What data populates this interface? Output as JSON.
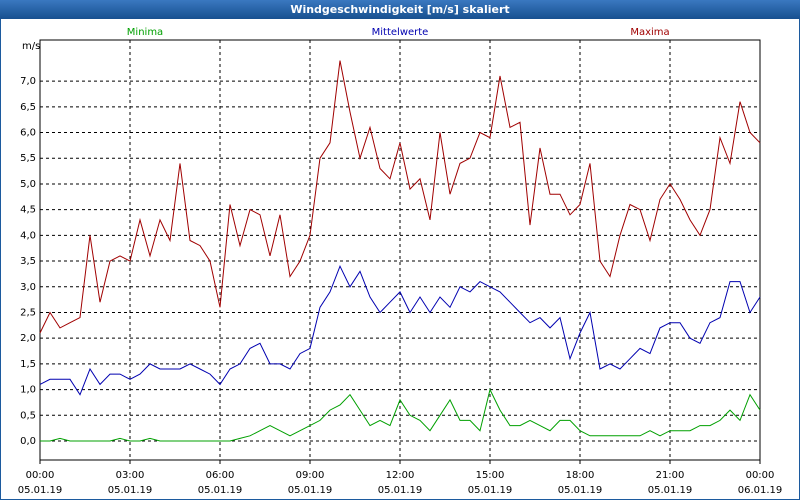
{
  "chart_data": {
    "type": "line",
    "title": "Windgeschwindigkeit [m/s] skaliert",
    "ylabel": "m/s",
    "x": [
      0,
      20,
      40,
      60,
      80,
      100,
      120,
      140,
      160,
      180,
      200,
      220,
      240,
      260,
      280,
      300,
      320,
      340,
      360,
      380,
      400,
      420,
      440,
      460,
      480,
      500,
      520,
      540,
      560,
      580,
      600,
      620,
      640,
      660,
      680,
      700,
      720,
      740,
      760,
      780,
      800,
      820,
      840,
      860,
      880,
      900,
      920,
      940,
      960,
      980,
      1000,
      1020,
      1040,
      1060,
      1080,
      1100,
      1120,
      1140,
      1160,
      1180,
      1200,
      1220,
      1240,
      1260,
      1280,
      1300,
      1320,
      1340,
      1360,
      1380,
      1400,
      1420,
      1440
    ],
    "series": [
      {
        "name": "Minima",
        "color": "#00a000",
        "values": [
          0,
          0,
          0.05,
          0,
          0,
          0,
          0,
          0,
          0.05,
          0,
          0,
          0.05,
          0,
          0,
          0,
          0,
          0,
          0,
          0,
          0,
          0.05,
          0.1,
          0.2,
          0.3,
          0.2,
          0.1,
          0.2,
          0.3,
          0.4,
          0.6,
          0.7,
          0.9,
          0.6,
          0.3,
          0.4,
          0.3,
          0.8,
          0.5,
          0.4,
          0.2,
          0.5,
          0.8,
          0.4,
          0.4,
          0.2,
          1.0,
          0.6,
          0.3,
          0.3,
          0.4,
          0.3,
          0.2,
          0.4,
          0.4,
          0.2,
          0.1,
          0.1,
          0.1,
          0.1,
          0.1,
          0.1,
          0.2,
          0.1,
          0.2,
          0.2,
          0.2,
          0.3,
          0.3,
          0.4,
          0.6,
          0.4,
          0.9,
          0.6
        ]
      },
      {
        "name": "Mittelwerte",
        "color": "#0000b0",
        "values": [
          1.1,
          1.2,
          1.2,
          1.2,
          0.9,
          1.4,
          1.1,
          1.3,
          1.3,
          1.2,
          1.3,
          1.5,
          1.4,
          1.4,
          1.4,
          1.5,
          1.4,
          1.3,
          1.1,
          1.4,
          1.5,
          1.8,
          1.9,
          1.5,
          1.5,
          1.4,
          1.7,
          1.8,
          2.6,
          2.9,
          3.4,
          3.0,
          3.3,
          2.8,
          2.5,
          2.7,
          2.9,
          2.5,
          2.8,
          2.5,
          2.8,
          2.6,
          3.0,
          2.9,
          3.1,
          3.0,
          2.9,
          2.7,
          2.5,
          2.3,
          2.4,
          2.2,
          2.4,
          1.6,
          2.1,
          2.5,
          1.4,
          1.5,
          1.4,
          1.6,
          1.8,
          1.7,
          2.2,
          2.3,
          2.3,
          2.0,
          1.9,
          2.3,
          2.4,
          3.1,
          3.1,
          2.5,
          2.8
        ]
      },
      {
        "name": "Maxima",
        "color": "#a00000",
        "values": [
          2.1,
          2.5,
          2.2,
          2.3,
          2.4,
          4.0,
          2.7,
          3.5,
          3.6,
          3.5,
          4.3,
          3.6,
          4.3,
          3.9,
          5.4,
          3.9,
          3.8,
          3.5,
          2.6,
          4.6,
          3.8,
          4.5,
          4.4,
          3.6,
          4.4,
          3.2,
          3.5,
          4.0,
          5.5,
          5.8,
          7.4,
          6.4,
          5.5,
          6.1,
          5.3,
          5.1,
          5.8,
          4.9,
          5.1,
          4.3,
          6.0,
          4.8,
          5.4,
          5.5,
          6.0,
          5.9,
          7.1,
          6.1,
          6.2,
          4.2,
          5.7,
          4.8,
          4.8,
          4.4,
          4.6,
          5.4,
          3.5,
          3.2,
          4.0,
          4.6,
          4.5,
          3.9,
          4.7,
          5.0,
          4.7,
          4.3,
          4.0,
          4.5,
          5.9,
          5.4,
          6.6,
          6.0,
          5.8
        ]
      }
    ],
    "xlim": [
      0,
      1440
    ],
    "xticks": [
      {
        "value": 0,
        "label": "00:00",
        "date": "05.01.19"
      },
      {
        "value": 180,
        "label": "03:00",
        "date": "05.01.19"
      },
      {
        "value": 360,
        "label": "06:00",
        "date": "05.01.19"
      },
      {
        "value": 540,
        "label": "09:00",
        "date": "05.01.19"
      },
      {
        "value": 720,
        "label": "12:00",
        "date": "05.01.19"
      },
      {
        "value": 900,
        "label": "15:00",
        "date": "05.01.19"
      },
      {
        "value": 1080,
        "label": "18:00",
        "date": "05.01.19"
      },
      {
        "value": 1260,
        "label": "21:00",
        "date": "05.01.19"
      },
      {
        "value": 1440,
        "label": "00:00",
        "date": "06.01.19"
      }
    ],
    "ylim": [
      -0.37,
      7.8
    ],
    "yticks": [
      {
        "value": 0,
        "label": "0,0"
      },
      {
        "value": 0.5,
        "label": "0,5"
      },
      {
        "value": 1,
        "label": "1,0"
      },
      {
        "value": 1.5,
        "label": "1,5"
      },
      {
        "value": 2,
        "label": "2,0"
      },
      {
        "value": 2.5,
        "label": "2,5"
      },
      {
        "value": 3,
        "label": "3,0"
      },
      {
        "value": 3.5,
        "label": "3,5"
      },
      {
        "value": 4,
        "label": "4,0"
      },
      {
        "value": 4.5,
        "label": "4,5"
      },
      {
        "value": 5,
        "label": "5,0"
      },
      {
        "value": 5.5,
        "label": "5,5"
      },
      {
        "value": 6,
        "label": "6,0"
      },
      {
        "value": 6.5,
        "label": "6,5"
      },
      {
        "value": 7,
        "label": "7,0"
      }
    ],
    "grid": true
  }
}
